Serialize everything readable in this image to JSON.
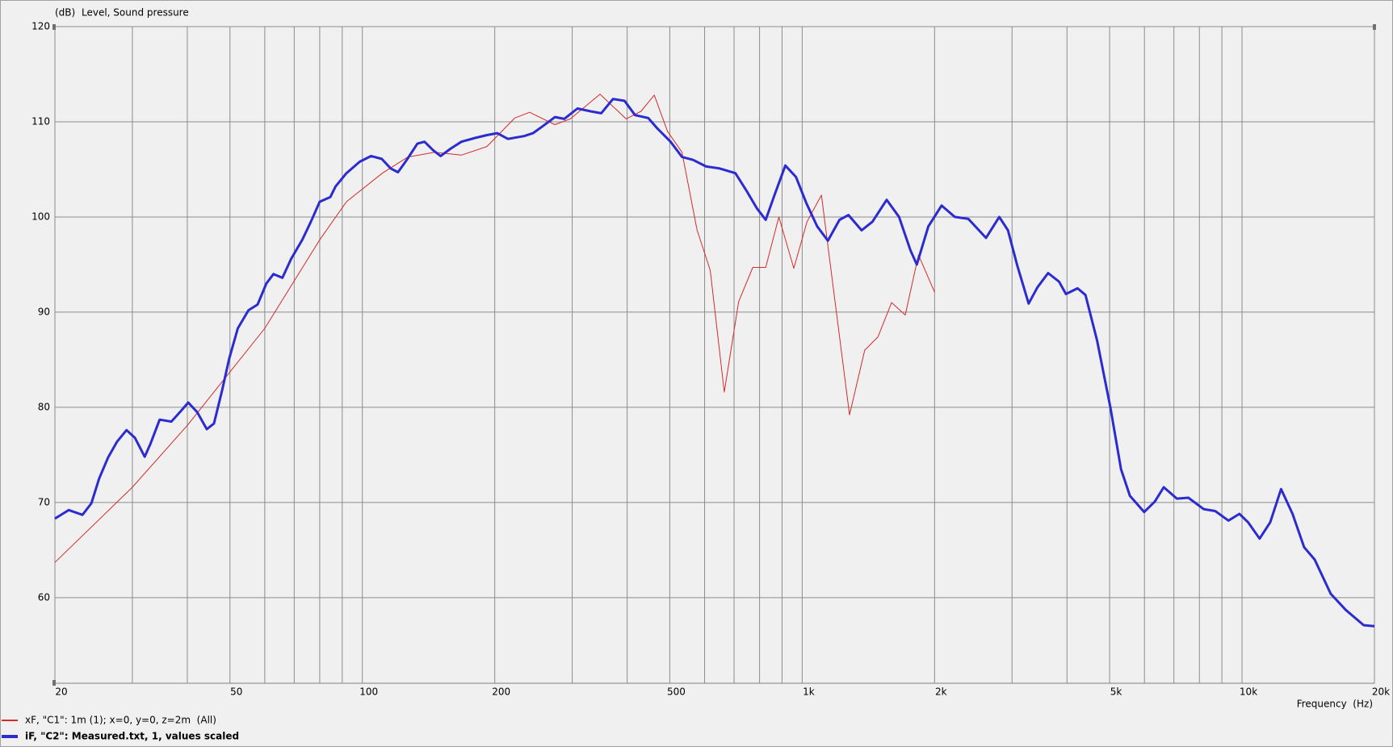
{
  "chart_data": {
    "type": "line",
    "title": "Level, Sound pressure",
    "y_label": "(dB)",
    "x_label": "Frequency  (Hz)",
    "x_scale": "log",
    "grid": true,
    "xlim": [
      20,
      20000
    ],
    "ylim": [
      51,
      120
    ],
    "yticks": [
      60,
      70,
      80,
      90,
      100,
      110,
      120
    ],
    "xticks": [
      20,
      50,
      100,
      200,
      500,
      {
        "value": 1000,
        "label": "1k"
      },
      {
        "value": 2000,
        "label": "2k"
      },
      {
        "value": 5000,
        "label": "5k"
      },
      {
        "value": 10000,
        "label": "10k"
      },
      {
        "value": 20000,
        "label": "20k"
      }
    ],
    "x_minor_ticks": [
      30,
      40,
      60,
      70,
      80,
      90,
      300,
      400,
      600,
      700,
      800,
      900,
      3000,
      4000,
      6000,
      7000,
      8000,
      9000
    ],
    "series": [
      {
        "name": "xF, \"C1\": 1m (1); x=0, y=0, z=2m  (All)",
        "color": "#d42a2a",
        "width": 1,
        "x": [
          20,
          30,
          40,
          50,
          60,
          80,
          92,
          111,
          127,
          146,
          168,
          192,
          222,
          240,
          274,
          297,
          347,
          398,
          430,
          461,
          494,
          533,
          577,
          618,
          665,
          717,
          772,
          826,
          885,
          957,
          1026,
          1106,
          1281,
          1387,
          1487,
          1597,
          1715,
          1838,
          2000
        ],
        "values": [
          63.7,
          71.6,
          78.1,
          83.7,
          88.3,
          97.6,
          101.6,
          104.6,
          106.3,
          106.8,
          106.5,
          107.4,
          110.4,
          111,
          109.7,
          110.3,
          112.9,
          110.3,
          111.1,
          112.8,
          109,
          106.8,
          98.6,
          94.4,
          81.6,
          91.1,
          94.7,
          94.7,
          100,
          94.6,
          99.5,
          102.3,
          79.2,
          86,
          87.4,
          91,
          89.7,
          96,
          92.1
        ]
      },
      {
        "name": "iF, \"C2\": Measured.txt, 1, values scaled",
        "color": "#2b2bcf",
        "width": 3,
        "x": [
          20,
          21.5,
          23.1,
          24.2,
          25.2,
          26.4,
          27.7,
          29.1,
          30.4,
          32,
          33,
          34.6,
          36.8,
          38.5,
          40.2,
          42.1,
          44.3,
          46,
          48,
          49.8,
          52.1,
          55.1,
          57.8,
          60.5,
          62.8,
          65.8,
          68.9,
          73,
          76.4,
          80,
          84.6,
          86.9,
          92,
          98.6,
          104.7,
          110.7,
          116,
          120.5,
          126.2,
          133.4,
          138.5,
          145,
          150.6,
          159,
          168,
          180.4,
          191.8,
          202.6,
          214.3,
          233.2,
          244.3,
          258.2,
          274.2,
          287.7,
          308.4,
          330.4,
          349.2,
          371.5,
          394.5,
          416.8,
          446.6,
          468.5,
          502,
          533.2,
          564.8,
          605,
          648.6,
          705,
          746.2,
          788.8,
          826,
          865,
          915.7,
          968,
          1023,
          1082,
          1144,
          1216,
          1274,
          1365,
          1445,
          1556,
          1660,
          1762,
          1822,
          1936,
          2075,
          2223,
          2386,
          2500,
          2618,
          2806,
          2937,
          3083,
          3272,
          3427,
          3624,
          3837,
          3979,
          4227,
          4407,
          4683,
          5020,
          5307,
          5560,
          5993,
          6337,
          6637,
          7112,
          7552,
          8180,
          8688,
          9311,
          9862,
          10330,
          10965,
          11590,
          12270,
          13030,
          13840,
          14630,
          15910,
          17220,
          18910,
          20000
        ],
        "values": [
          68.3,
          69.2,
          68.7,
          69.9,
          72.5,
          74.7,
          76.4,
          77.6,
          76.8,
          74.8,
          76.2,
          78.7,
          78.5,
          79.5,
          80.5,
          79.5,
          77.7,
          78.3,
          81.8,
          85.1,
          88.3,
          90.2,
          90.8,
          93,
          94,
          93.6,
          95.6,
          97.6,
          99.5,
          101.6,
          102.1,
          103.2,
          104.6,
          105.8,
          106.4,
          106.1,
          105.1,
          104.7,
          106,
          107.7,
          107.9,
          107,
          106.4,
          107.2,
          107.9,
          108.3,
          108.6,
          108.8,
          108.2,
          108.5,
          108.8,
          109.6,
          110.5,
          110.3,
          111.4,
          111.1,
          110.9,
          112.4,
          112.2,
          110.7,
          110.4,
          109.3,
          107.9,
          106.3,
          106,
          105.3,
          105.1,
          104.6,
          102.8,
          100.9,
          99.7,
          102.3,
          105.4,
          104.2,
          101.4,
          99,
          97.5,
          99.7,
          100.2,
          98.6,
          99.5,
          101.8,
          100,
          96.5,
          95,
          99,
          101.2,
          100,
          99.8,
          98.8,
          97.8,
          100,
          98.6,
          94.9,
          90.9,
          92.6,
          94.1,
          93.2,
          91.9,
          92.5,
          91.8,
          87,
          80,
          73.5,
          70.7,
          69,
          70.1,
          71.6,
          70.4,
          70.5,
          69.3,
          69.1,
          68.1,
          68.8,
          67.9,
          66.2,
          67.9,
          71.4,
          68.8,
          65.3,
          64,
          60.4,
          58.7,
          57.1,
          57
        ]
      }
    ]
  }
}
